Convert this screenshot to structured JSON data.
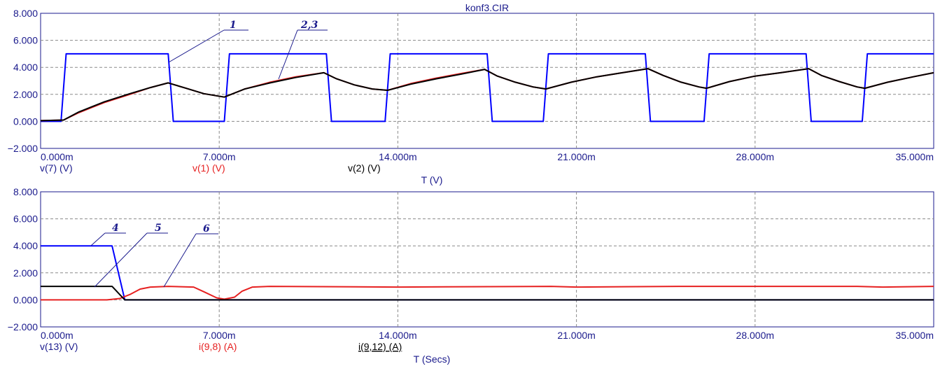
{
  "chart_data": [
    {
      "type": "line",
      "title": "konf3.CIR",
      "xlabel": "T (V)",
      "x_range": [
        0,
        35
      ],
      "ylim": [
        -2,
        8
      ],
      "y_ticks": [
        "8.000",
        "6.000",
        "4.000",
        "2.000",
        "0.000",
        "−2.000"
      ],
      "x_ticks": [
        "0.000m",
        "7.000m",
        "14.000m",
        "21.000m",
        "28.000m",
        "35.000m"
      ],
      "legend": [
        {
          "text": "v(7) (V)",
          "color": "#1a1a8c",
          "underline": false
        },
        {
          "text": "v(1) (V)",
          "color": "#e62020",
          "underline": false
        },
        {
          "text": "v(2) (V)",
          "color": "#000000",
          "underline": false
        }
      ],
      "curve_labels": [
        "1",
        "2,3"
      ],
      "series": [
        {
          "name": "v(7) (V)",
          "color": "#0000ff",
          "x": [
            0,
            0.8,
            1.0,
            5.0,
            5.2,
            7.2,
            7.4,
            11.2,
            11.4,
            13.5,
            13.7,
            17.5,
            17.7,
            19.7,
            19.9,
            23.7,
            23.9,
            26.0,
            26.2,
            30.0,
            30.2,
            32.2,
            32.4,
            35
          ],
          "values": [
            0,
            0,
            5,
            5,
            0,
            0,
            5,
            5,
            0,
            0,
            5,
            5,
            0,
            0,
            5,
            5,
            0,
            0,
            5,
            5,
            0,
            0,
            5,
            5
          ]
        },
        {
          "name": "v(1) (V)",
          "color": "#e62020",
          "x": [
            0,
            0.9,
            1.5,
            2.5,
            3.5,
            4.3,
            5.0,
            5.7,
            6.4,
            7.2,
            8.0,
            9.0,
            10.0,
            11.1,
            11.6,
            12.3,
            13.0,
            13.6,
            14.5,
            15.5,
            16.5,
            17.4,
            17.9,
            18.6,
            19.3,
            19.8,
            20.8,
            21.8,
            22.8,
            23.8,
            24.4,
            25.1,
            25.8,
            26.1,
            27.0,
            28.0,
            29.0,
            30.1,
            30.6,
            31.3,
            32.0,
            32.3,
            33.2,
            34.2,
            35
          ],
          "values": [
            0.05,
            0.1,
            0.65,
            1.4,
            2.0,
            2.5,
            2.85,
            2.45,
            2.05,
            1.8,
            2.4,
            2.9,
            3.3,
            3.6,
            3.15,
            2.7,
            2.4,
            2.3,
            2.8,
            3.2,
            3.55,
            3.85,
            3.35,
            2.9,
            2.55,
            2.4,
            2.9,
            3.3,
            3.6,
            3.9,
            3.4,
            2.9,
            2.55,
            2.45,
            2.95,
            3.35,
            3.6,
            3.9,
            3.4,
            2.95,
            2.55,
            2.45,
            2.9,
            3.3,
            3.6
          ]
        },
        {
          "name": "v(2) (V)",
          "color": "#000000",
          "x": [
            0,
            0.9,
            1.5,
            2.5,
            3.5,
            4.3,
            5.0,
            5.7,
            6.4,
            7.2,
            8.0,
            9.0,
            10.0,
            11.1,
            11.6,
            12.3,
            13.0,
            13.6,
            14.5,
            15.5,
            16.5,
            17.4,
            17.9,
            18.6,
            19.3,
            19.8,
            20.8,
            21.8,
            22.8,
            23.8,
            24.4,
            25.1,
            25.8,
            26.1,
            27.0,
            28.0,
            29.0,
            30.1,
            30.6,
            31.3,
            32.0,
            32.3,
            33.2,
            34.2,
            35
          ],
          "values": [
            0.05,
            0.1,
            0.7,
            1.45,
            2.05,
            2.5,
            2.85,
            2.45,
            2.05,
            1.8,
            2.4,
            2.85,
            3.25,
            3.6,
            3.15,
            2.7,
            2.4,
            2.3,
            2.75,
            3.15,
            3.5,
            3.85,
            3.35,
            2.9,
            2.55,
            2.4,
            2.9,
            3.3,
            3.6,
            3.9,
            3.4,
            2.9,
            2.55,
            2.45,
            2.95,
            3.35,
            3.6,
            3.9,
            3.4,
            2.95,
            2.55,
            2.45,
            2.9,
            3.3,
            3.6
          ]
        }
      ]
    },
    {
      "type": "line",
      "xlabel": "T (Secs)",
      "x_range": [
        0,
        35
      ],
      "ylim": [
        -2,
        8
      ],
      "y_ticks": [
        "8.000",
        "6.000",
        "4.000",
        "2.000",
        "0.000",
        "−2.000"
      ],
      "x_ticks": [
        "0.000m",
        "7.000m",
        "14.000m",
        "21.000m",
        "28.000m",
        "35.000m"
      ],
      "legend": [
        {
          "text": "v(13) (V)",
          "color": "#1a1a8c",
          "underline": false
        },
        {
          "text": "i(9,8) (A)",
          "color": "#e62020",
          "underline": false
        },
        {
          "text": "i(9,12) (A)",
          "color": "#000000",
          "underline": true
        }
      ],
      "curve_labels": [
        "4",
        "5",
        "6"
      ],
      "series": [
        {
          "name": "v(13) (V)",
          "color": "#0000ff",
          "x": [
            0,
            2.8,
            3.3,
            35
          ],
          "values": [
            4.0,
            4.0,
            0.0,
            0.0
          ]
        },
        {
          "name": "i(9,8) (A)",
          "color": "#e62020",
          "x": [
            0,
            2.6,
            3.1,
            3.5,
            3.9,
            4.3,
            5.0,
            6.0,
            6.4,
            6.9,
            7.2,
            7.6,
            7.9,
            8.3,
            9.0,
            14.0,
            20.0,
            21.0,
            25.0,
            28.0,
            32.0,
            33.0,
            35
          ],
          "values": [
            0.0,
            0.0,
            0.1,
            0.4,
            0.8,
            0.95,
            1.0,
            0.95,
            0.6,
            0.15,
            0.05,
            0.2,
            0.65,
            0.95,
            1.0,
            0.95,
            1.0,
            0.95,
            1.0,
            1.0,
            1.0,
            0.95,
            1.0
          ]
        },
        {
          "name": "i(9,12) (A)",
          "color": "#000000",
          "x": [
            0,
            2.8,
            3.3,
            35
          ],
          "values": [
            1.0,
            1.0,
            0.0,
            0.0
          ]
        }
      ]
    }
  ]
}
